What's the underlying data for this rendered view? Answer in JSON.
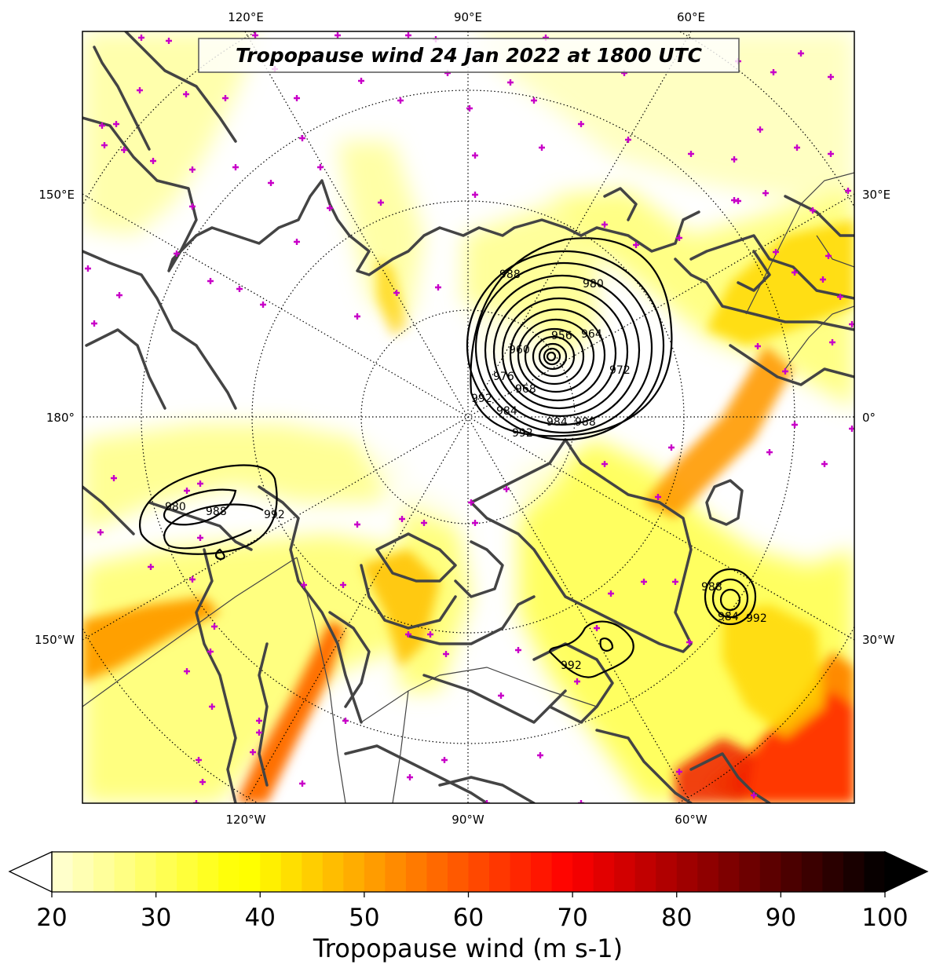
{
  "title": "Tropopause wind 24 Jan 2022 at 1800 UTC",
  "lon_labels": {
    "top": [
      "120°E",
      "90°E",
      "60°E"
    ],
    "bottom": [
      "120°W",
      "90°W",
      "60°W"
    ],
    "left": [
      "150°E",
      "180°",
      "150°W"
    ],
    "right": [
      "30°E",
      "0°",
      "30°W"
    ]
  },
  "pressure_contours": {
    "units": "hPa",
    "low_north_atlantic_arctic": [
      "988",
      "980",
      "956",
      "964",
      "960",
      "972",
      "976",
      "968",
      "992",
      "984",
      "984",
      "988",
      "992"
    ],
    "low_alaska_gulf": [
      "980",
      "988",
      "992"
    ],
    "low_south_greenland": [
      "988",
      "984",
      "992"
    ],
    "low_baffin_bay": [
      "992"
    ]
  },
  "colorbar": {
    "label": "Tropopause wind (m s-1)",
    "ticks": [
      "20",
      "30",
      "40",
      "50",
      "60",
      "70",
      "80",
      "90",
      "100"
    ],
    "min": 20,
    "max": 100,
    "step": 2,
    "extend": "both",
    "colormap": "hot_r"
  },
  "markers": {
    "symbol": "+",
    "color": "#c800c8",
    "meaning": "station markers"
  },
  "colors": {
    "coastline": "#444444",
    "contour": "#000000",
    "graticule": "#000000"
  }
}
